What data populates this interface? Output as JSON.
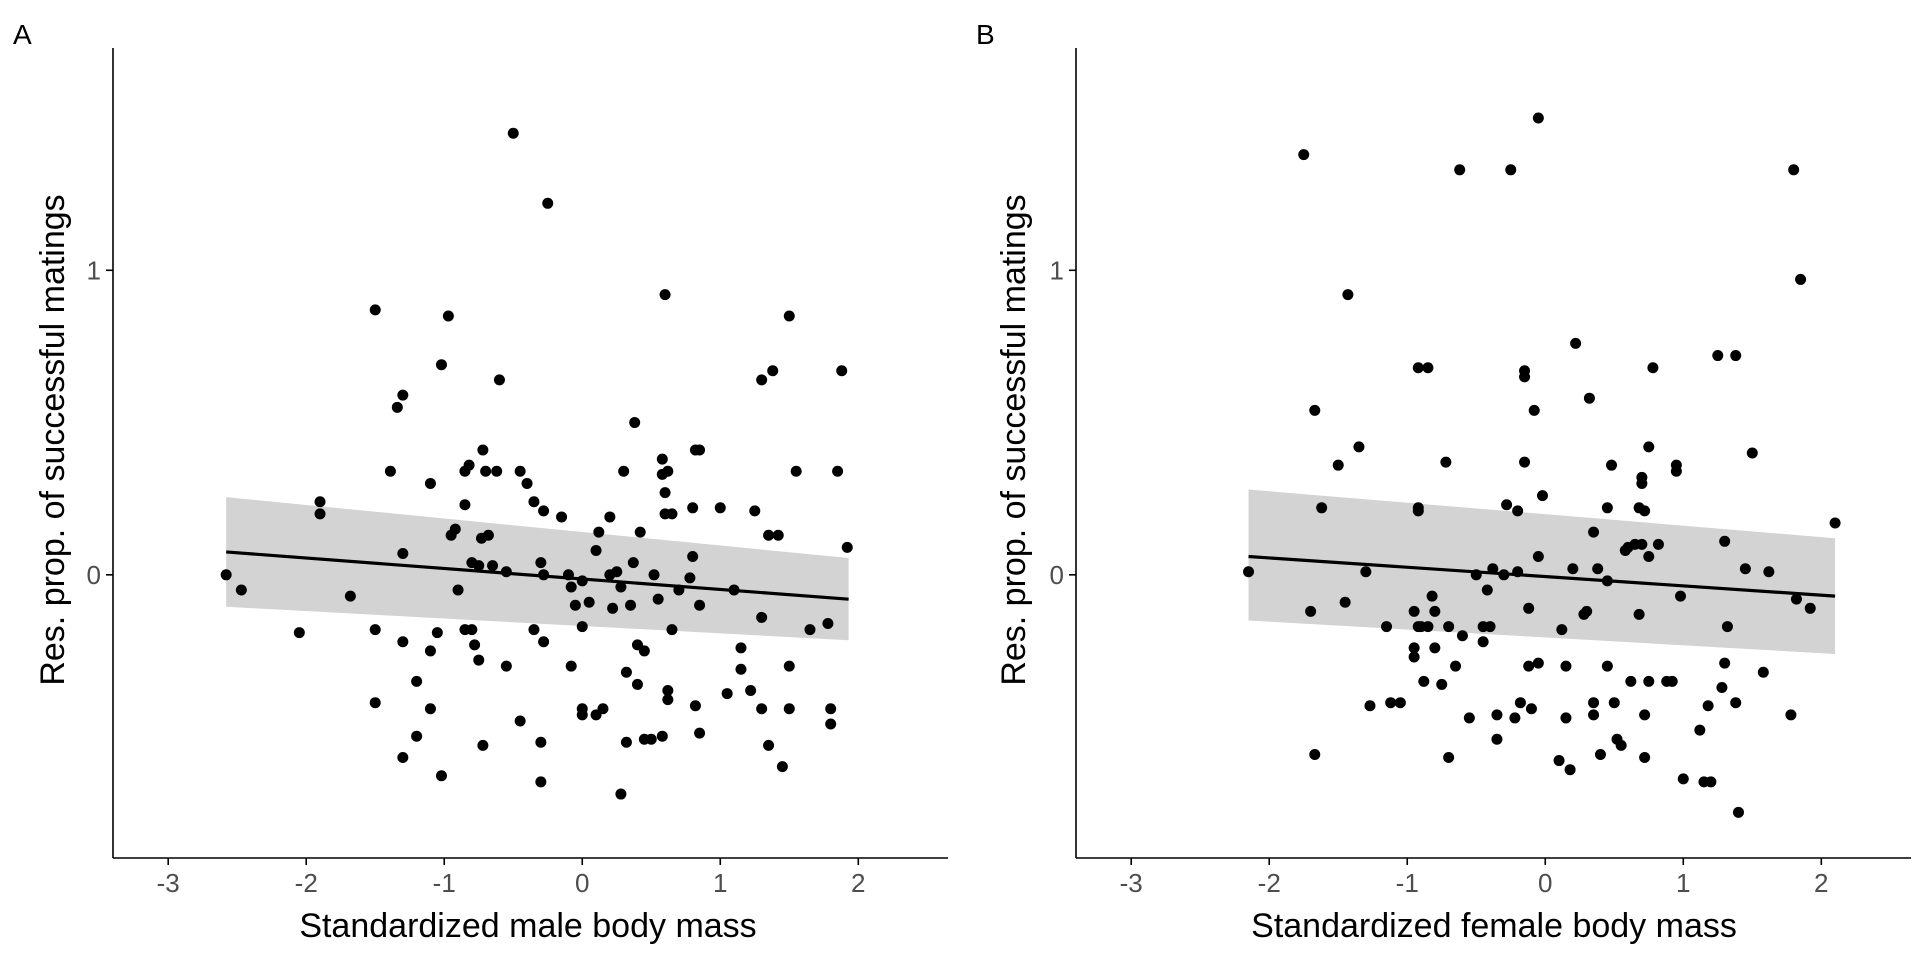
{
  "colors": {
    "points": "#000000",
    "line": "#000000",
    "ribbon": "#d3d3d3",
    "axis": "#000000",
    "tick_text": "#4d4d4d"
  },
  "chart_data": [
    {
      "type": "scatter",
      "panel_label": "A",
      "xlabel": "Standardized male body mass",
      "ylabel": "Res. prop. of successful matings",
      "xlim": [
        -3.4,
        2.65
      ],
      "ylim": [
        -0.93,
        1.73
      ],
      "x_ticks": [
        -3,
        -2,
        -1,
        0,
        1,
        2
      ],
      "x_tick_labels": [
        "-3",
        "-2",
        "-1",
        "0",
        "1",
        "2"
      ],
      "y_ticks": [
        0,
        1
      ],
      "y_tick_labels": [
        "0",
        "1"
      ],
      "grid": false,
      "legend": "none",
      "fit": {
        "method": "linear regression with confidence band",
        "x": [
          -2.58,
          1.93
        ],
        "y": [
          0.075,
          -0.08
        ],
        "lower": [
          -0.105,
          -0.215
        ],
        "upper": [
          0.255,
          0.055
        ]
      },
      "points": [
        [
          -2.58,
          0.0
        ],
        [
          -2.47,
          -0.05
        ],
        [
          -2.05,
          -0.19
        ],
        [
          -1.9,
          0.24
        ],
        [
          -1.9,
          0.2
        ],
        [
          -1.68,
          -0.07
        ],
        [
          -1.5,
          0.87
        ],
        [
          -1.5,
          -0.18
        ],
        [
          -1.5,
          -0.42
        ],
        [
          -1.39,
          0.34
        ],
        [
          -1.34,
          0.55
        ],
        [
          -1.3,
          0.59
        ],
        [
          -1.3,
          -0.22
        ],
        [
          -1.3,
          -0.6
        ],
        [
          -1.3,
          0.07
        ],
        [
          -1.2,
          -0.35
        ],
        [
          -1.2,
          -0.53
        ],
        [
          -1.1,
          0.3
        ],
        [
          -1.1,
          -0.25
        ],
        [
          -1.1,
          -0.44
        ],
        [
          -1.05,
          -0.19
        ],
        [
          -1.02,
          0.69
        ],
        [
          -1.02,
          -0.66
        ],
        [
          -0.97,
          0.85
        ],
        [
          -0.95,
          0.13
        ],
        [
          -0.92,
          0.15
        ],
        [
          -0.9,
          -0.05
        ],
        [
          -0.85,
          0.23
        ],
        [
          -0.85,
          0.34
        ],
        [
          -0.85,
          -0.18
        ],
        [
          -0.82,
          0.36
        ],
        [
          -0.8,
          0.04
        ],
        [
          -0.8,
          -0.18
        ],
        [
          -0.78,
          -0.23
        ],
        [
          -0.75,
          -0.28
        ],
        [
          -0.75,
          0.03
        ],
        [
          -0.73,
          0.12
        ],
        [
          -0.72,
          0.41
        ],
        [
          -0.72,
          -0.56
        ],
        [
          -0.7,
          0.34
        ],
        [
          -0.68,
          0.13
        ],
        [
          -0.65,
          0.03
        ],
        [
          -0.62,
          0.34
        ],
        [
          -0.6,
          0.64
        ],
        [
          -0.55,
          0.01
        ],
        [
          -0.55,
          -0.3
        ],
        [
          -0.5,
          1.45
        ],
        [
          -0.45,
          0.34
        ],
        [
          -0.45,
          -0.48
        ],
        [
          -0.4,
          0.3
        ],
        [
          -0.35,
          0.24
        ],
        [
          -0.35,
          -0.18
        ],
        [
          -0.3,
          0.04
        ],
        [
          -0.3,
          -0.55
        ],
        [
          -0.3,
          -0.68
        ],
        [
          -0.28,
          0.21
        ],
        [
          -0.28,
          -0.22
        ],
        [
          -0.28,
          0.0
        ],
        [
          -0.25,
          1.22
        ],
        [
          -0.15,
          0.19
        ],
        [
          -0.1,
          0.0
        ],
        [
          -0.08,
          -0.04
        ],
        [
          -0.08,
          -0.3
        ],
        [
          -0.05,
          -0.1
        ],
        [
          0.0,
          -0.02
        ],
        [
          0.0,
          -0.17
        ],
        [
          0.0,
          -0.44
        ],
        [
          0.0,
          -0.46
        ],
        [
          0.05,
          -0.09
        ],
        [
          0.1,
          0.08
        ],
        [
          0.1,
          -0.46
        ],
        [
          0.12,
          0.14
        ],
        [
          0.15,
          -0.44
        ],
        [
          0.2,
          0.19
        ],
        [
          0.2,
          0.0
        ],
        [
          0.22,
          -0.11
        ],
        [
          0.25,
          0.01
        ],
        [
          0.28,
          -0.72
        ],
        [
          0.28,
          -0.04
        ],
        [
          0.3,
          0.34
        ],
        [
          0.32,
          -0.55
        ],
        [
          0.32,
          -0.32
        ],
        [
          0.35,
          -0.1
        ],
        [
          0.37,
          0.04
        ],
        [
          0.38,
          0.5
        ],
        [
          0.4,
          -0.23
        ],
        [
          0.4,
          -0.36
        ],
        [
          0.42,
          0.14
        ],
        [
          0.45,
          -0.54
        ],
        [
          0.45,
          -0.25
        ],
        [
          0.5,
          -0.54
        ],
        [
          0.52,
          0.0
        ],
        [
          0.55,
          -0.08
        ],
        [
          0.58,
          0.38
        ],
        [
          0.58,
          0.33
        ],
        [
          0.58,
          -0.53
        ],
        [
          0.6,
          0.2
        ],
        [
          0.6,
          0.27
        ],
        [
          0.6,
          0.92
        ],
        [
          0.62,
          0.34
        ],
        [
          0.62,
          -0.41
        ],
        [
          0.62,
          -0.38
        ],
        [
          0.65,
          0.2
        ],
        [
          0.65,
          -0.18
        ],
        [
          0.7,
          -0.05
        ],
        [
          0.78,
          -0.01
        ],
        [
          0.8,
          0.22
        ],
        [
          0.8,
          0.06
        ],
        [
          0.82,
          0.41
        ],
        [
          0.82,
          -0.43
        ],
        [
          0.85,
          -0.52
        ],
        [
          0.85,
          -0.1
        ],
        [
          0.85,
          0.41
        ],
        [
          1.0,
          0.22
        ],
        [
          1.05,
          -0.39
        ],
        [
          1.1,
          -0.05
        ],
        [
          1.15,
          -0.24
        ],
        [
          1.15,
          -0.31
        ],
        [
          1.22,
          -0.38
        ],
        [
          1.25,
          0.21
        ],
        [
          1.3,
          -0.14
        ],
        [
          1.3,
          0.64
        ],
        [
          1.3,
          -0.44
        ],
        [
          1.35,
          -0.56
        ],
        [
          1.35,
          0.13
        ],
        [
          1.38,
          0.67
        ],
        [
          1.42,
          0.13
        ],
        [
          1.45,
          -0.63
        ],
        [
          1.5,
          0.85
        ],
        [
          1.5,
          -0.3
        ],
        [
          1.5,
          -0.44
        ],
        [
          1.55,
          0.34
        ],
        [
          1.65,
          -0.18
        ],
        [
          1.78,
          -0.16
        ],
        [
          1.8,
          -0.44
        ],
        [
          1.8,
          -0.49
        ],
        [
          1.85,
          0.34
        ],
        [
          1.88,
          0.67
        ],
        [
          1.92,
          0.09
        ]
      ]
    },
    {
      "type": "scatter",
      "panel_label": "B",
      "xlabel": "Standardized female body mass",
      "ylabel": "Res. prop. of successful matings",
      "xlim": [
        -3.4,
        2.65
      ],
      "ylim": [
        -0.93,
        1.73
      ],
      "x_ticks": [
        -3,
        -2,
        -1,
        0,
        1,
        2
      ],
      "x_tick_labels": [
        "-3",
        "-2",
        "-1",
        "0",
        "1",
        "2"
      ],
      "y_ticks": [
        0,
        1
      ],
      "y_tick_labels": [
        "0",
        "1"
      ],
      "grid": false,
      "legend": "none",
      "fit": {
        "method": "linear regression with confidence band",
        "x": [
          -2.15,
          2.1
        ],
        "y": [
          0.06,
          -0.07
        ],
        "lower": [
          -0.15,
          -0.26
        ],
        "upper": [
          0.28,
          0.12
        ]
      },
      "points": [
        [
          -2.15,
          0.01
        ],
        [
          -1.75,
          1.38
        ],
        [
          -1.7,
          -0.12
        ],
        [
          -1.67,
          0.54
        ],
        [
          -1.67,
          -0.59
        ],
        [
          -1.62,
          0.22
        ],
        [
          -1.5,
          0.36
        ],
        [
          -1.45,
          -0.09
        ],
        [
          -1.43,
          0.92
        ],
        [
          -1.35,
          0.42
        ],
        [
          -1.3,
          0.01
        ],
        [
          -1.27,
          -0.43
        ],
        [
          -1.15,
          -0.17
        ],
        [
          -1.12,
          -0.42
        ],
        [
          -1.05,
          -0.42
        ],
        [
          -0.95,
          -0.12
        ],
        [
          -0.95,
          -0.24
        ],
        [
          -0.95,
          -0.27
        ],
        [
          -0.92,
          -0.17
        ],
        [
          -0.92,
          0.21
        ],
        [
          -0.92,
          0.22
        ],
        [
          -0.92,
          0.68
        ],
        [
          -0.9,
          -0.17
        ],
        [
          -0.88,
          -0.35
        ],
        [
          -0.85,
          0.68
        ],
        [
          -0.85,
          -0.17
        ],
        [
          -0.82,
          -0.07
        ],
        [
          -0.8,
          -0.12
        ],
        [
          -0.8,
          -0.24
        ],
        [
          -0.75,
          -0.36
        ],
        [
          -0.72,
          0.37
        ],
        [
          -0.7,
          -0.17
        ],
        [
          -0.7,
          -0.6
        ],
        [
          -0.65,
          -0.3
        ],
        [
          -0.62,
          1.33
        ],
        [
          -0.6,
          -0.2
        ],
        [
          -0.55,
          -0.47
        ],
        [
          -0.5,
          0.0
        ],
        [
          -0.45,
          -0.17
        ],
        [
          -0.45,
          -0.22
        ],
        [
          -0.42,
          -0.05
        ],
        [
          -0.4,
          -0.17
        ],
        [
          -0.38,
          0.02
        ],
        [
          -0.35,
          -0.46
        ],
        [
          -0.35,
          -0.54
        ],
        [
          -0.3,
          0.0
        ],
        [
          -0.28,
          0.23
        ],
        [
          -0.25,
          1.33
        ],
        [
          -0.22,
          -0.47
        ],
        [
          -0.2,
          0.01
        ],
        [
          -0.2,
          0.21
        ],
        [
          -0.18,
          -0.42
        ],
        [
          -0.15,
          0.67
        ],
        [
          -0.15,
          0.65
        ],
        [
          -0.15,
          0.37
        ],
        [
          -0.12,
          -0.11
        ],
        [
          -0.12,
          -0.3
        ],
        [
          -0.1,
          -0.44
        ],
        [
          -0.08,
          0.54
        ],
        [
          -0.05,
          1.5
        ],
        [
          -0.05,
          0.06
        ],
        [
          -0.05,
          -0.29
        ],
        [
          -0.02,
          0.26
        ],
        [
          0.1,
          -0.61
        ],
        [
          0.12,
          -0.18
        ],
        [
          0.15,
          -0.47
        ],
        [
          0.15,
          -0.3
        ],
        [
          0.18,
          -0.64
        ],
        [
          0.2,
          0.02
        ],
        [
          0.22,
          0.76
        ],
        [
          0.28,
          -0.13
        ],
        [
          0.3,
          -0.12
        ],
        [
          0.32,
          0.58
        ],
        [
          0.35,
          0.14
        ],
        [
          0.35,
          -0.46
        ],
        [
          0.35,
          -0.42
        ],
        [
          0.38,
          0.02
        ],
        [
          0.4,
          -0.59
        ],
        [
          0.45,
          0.22
        ],
        [
          0.45,
          -0.02
        ],
        [
          0.45,
          -0.3
        ],
        [
          0.48,
          0.36
        ],
        [
          0.5,
          -0.42
        ],
        [
          0.52,
          -0.54
        ],
        [
          0.55,
          -0.56
        ],
        [
          0.58,
          0.08
        ],
        [
          0.6,
          0.09
        ],
        [
          0.62,
          -0.35
        ],
        [
          0.65,
          0.1
        ],
        [
          0.68,
          -0.13
        ],
        [
          0.68,
          0.22
        ],
        [
          0.7,
          0.3
        ],
        [
          0.7,
          0.32
        ],
        [
          0.7,
          0.1
        ],
        [
          0.72,
          -0.6
        ],
        [
          0.72,
          -0.46
        ],
        [
          0.72,
          0.21
        ],
        [
          0.75,
          0.06
        ],
        [
          0.75,
          0.42
        ],
        [
          0.75,
          -0.35
        ],
        [
          0.78,
          0.68
        ],
        [
          0.82,
          0.1
        ],
        [
          0.88,
          -0.35
        ],
        [
          0.92,
          -0.35
        ],
        [
          0.95,
          0.36
        ],
        [
          0.95,
          0.34
        ],
        [
          0.98,
          -0.07
        ],
        [
          1.0,
          -0.67
        ],
        [
          1.12,
          -0.51
        ],
        [
          1.15,
          -0.68
        ],
        [
          1.18,
          -0.43
        ],
        [
          1.2,
          -0.68
        ],
        [
          1.25,
          0.72
        ],
        [
          1.28,
          -0.37
        ],
        [
          1.3,
          0.11
        ],
        [
          1.3,
          -0.29
        ],
        [
          1.32,
          -0.17
        ],
        [
          1.38,
          0.72
        ],
        [
          1.38,
          -0.42
        ],
        [
          1.4,
          -0.78
        ],
        [
          1.45,
          0.02
        ],
        [
          1.5,
          0.4
        ],
        [
          1.58,
          -0.32
        ],
        [
          1.62,
          0.01
        ],
        [
          1.78,
          -0.46
        ],
        [
          1.8,
          1.33
        ],
        [
          1.82,
          -0.08
        ],
        [
          1.85,
          0.97
        ],
        [
          1.92,
          -0.11
        ],
        [
          2.1,
          0.17
        ]
      ]
    }
  ]
}
